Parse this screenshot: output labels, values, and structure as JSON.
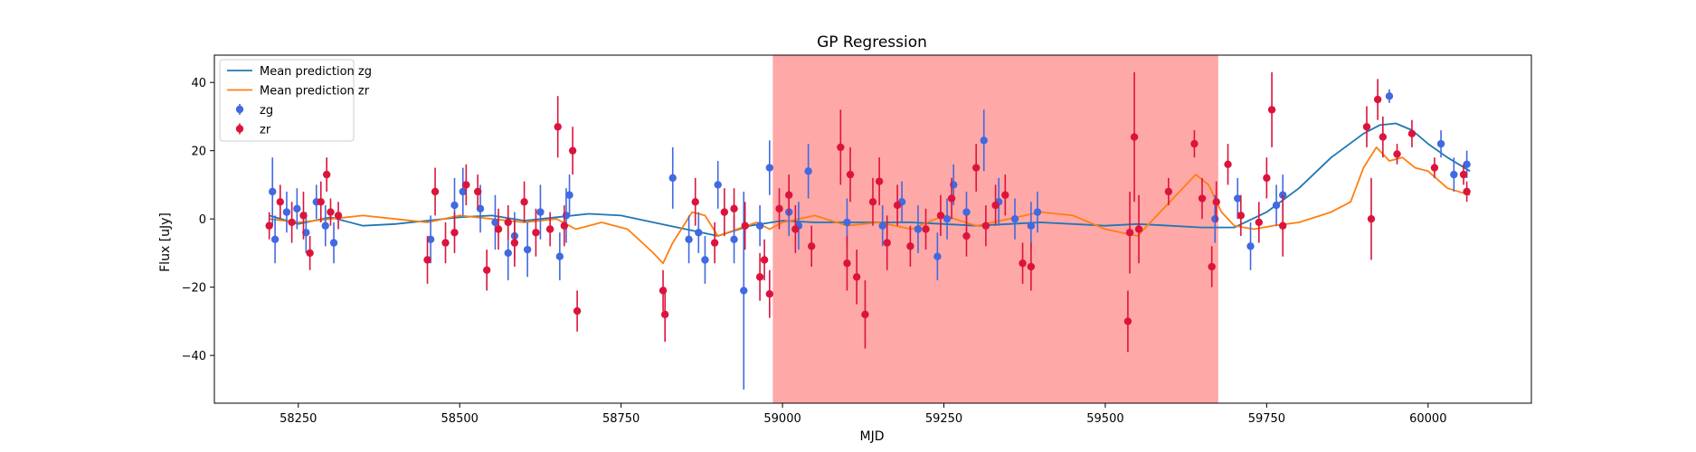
{
  "chart_data": {
    "type": "scatter",
    "title": "GP Regression",
    "xlabel": "MJD",
    "ylabel": "Flux [uJy]",
    "xlim": [
      58120,
      60160
    ],
    "ylim": [
      -54,
      48
    ],
    "xticks": [
      58250,
      58500,
      58750,
      59000,
      59250,
      59500,
      59750,
      60000
    ],
    "yticks": [
      -40,
      -20,
      0,
      20,
      40
    ],
    "shaded_region": {
      "x0": 58985,
      "x1": 59675,
      "color": "#ff7f7f"
    },
    "legend": {
      "placement": "top-left",
      "entries": [
        "Mean prediction zg",
        "Mean prediction zr",
        "zg",
        "zr"
      ]
    },
    "series": [
      {
        "name": "Mean prediction zg",
        "kind": "line",
        "color": "#1f77b4",
        "x": [
          58205,
          58250,
          58300,
          58350,
          58400,
          58450,
          58500,
          58550,
          58600,
          58650,
          58700,
          58750,
          58800,
          58850,
          58900,
          58950,
          59000,
          59050,
          59100,
          59150,
          59200,
          59250,
          59300,
          59350,
          59400,
          59450,
          59500,
          59550,
          59600,
          59650,
          59700,
          59750,
          59800,
          59850,
          59900,
          59925,
          59950,
          59975,
          60000,
          60030,
          60065
        ],
        "y": [
          1,
          -1.5,
          0.5,
          -2,
          -1.5,
          -0.5,
          0.5,
          1,
          -0.5,
          0.5,
          1.5,
          1,
          -1,
          -3,
          -5,
          -2,
          -0.5,
          -1,
          -1,
          -1,
          -1,
          -1.5,
          -2,
          -1.5,
          -1,
          -1.5,
          -2,
          -1.5,
          -2,
          -2.5,
          -2.5,
          2,
          9,
          18,
          25,
          27.5,
          28,
          26,
          22,
          18,
          14
        ]
      },
      {
        "name": "Mean prediction zr",
        "kind": "line",
        "color": "#ff7f0e",
        "x": [
          58205,
          58250,
          58300,
          58350,
          58400,
          58450,
          58500,
          58550,
          58600,
          58650,
          58680,
          58720,
          58760,
          58800,
          58815,
          58830,
          58860,
          58880,
          58900,
          58930,
          58960,
          58980,
          59000,
          59050,
          59100,
          59150,
          59200,
          59250,
          59300,
          59350,
          59400,
          59450,
          59500,
          59550,
          59600,
          59640,
          59660,
          59680,
          59700,
          59730,
          59760,
          59800,
          59850,
          59880,
          59900,
          59920,
          59940,
          59960,
          59980,
          60000,
          60030,
          60065
        ],
        "y": [
          0,
          -1,
          0,
          1,
          0,
          -1,
          1,
          0,
          -1,
          0,
          -3,
          -1,
          -3,
          -10,
          -13,
          -7,
          2,
          1,
          -5,
          -3,
          -1,
          -3,
          -1,
          1,
          -2,
          -1,
          -3,
          1,
          -2,
          0,
          2,
          1,
          -3,
          -5,
          5,
          13,
          10,
          2,
          -2,
          -3,
          -2,
          -1,
          2,
          5,
          15,
          21,
          17,
          18,
          15,
          14,
          9,
          7
        ]
      },
      {
        "name": "zg",
        "kind": "errorbar",
        "color": "#4169e1",
        "x": [
          58210,
          58214,
          58232,
          58248,
          58262,
          58278,
          58292,
          58305,
          58455,
          58492,
          58505,
          58532,
          58555,
          58575,
          58585,
          58605,
          58625,
          58655,
          58665,
          58670,
          58830,
          58855,
          58870,
          58880,
          58900,
          58925,
          58940,
          58965,
          58980,
          59010,
          59025,
          59040,
          59100,
          59155,
          59185,
          59210,
          59240,
          59255,
          59265,
          59285,
          59312,
          59335,
          59360,
          59385,
          59395,
          59670,
          59705,
          59725,
          59765,
          59775,
          59940,
          60020,
          60040,
          60060
        ],
        "y": [
          8,
          -6,
          2,
          3,
          -4,
          5,
          -2,
          -7,
          -6,
          4,
          8,
          3,
          -1,
          -10,
          -5,
          -9,
          2,
          -11,
          1,
          7,
          12,
          -6,
          -4,
          -12,
          10,
          -6,
          -21,
          -2,
          15,
          2,
          -2,
          14,
          -1,
          -2,
          5,
          -3,
          -11,
          0,
          10,
          2,
          23,
          5,
          0,
          -2,
          2,
          0,
          6,
          -8,
          4,
          7,
          36,
          22,
          13,
          16
        ],
        "err": [
          10,
          7,
          6,
          6,
          6,
          5,
          6,
          6,
          7,
          8,
          7,
          7,
          8,
          8,
          7,
          8,
          8,
          7,
          8,
          6,
          9,
          7,
          6,
          7,
          7,
          7,
          29,
          6,
          8,
          7,
          7,
          8,
          7,
          6,
          6,
          7,
          7,
          6,
          6,
          6,
          9,
          7,
          6,
          7,
          6,
          7,
          6,
          7,
          6,
          6,
          2,
          4,
          5,
          4
        ]
      },
      {
        "name": "zr",
        "kind": "errorbar",
        "color": "#dc143c",
        "x": [
          58205,
          58222,
          58240,
          58258,
          58268,
          58285,
          58294,
          58300,
          58312,
          58450,
          58462,
          58478,
          58492,
          58510,
          58528,
          58542,
          58560,
          58575,
          58585,
          58600,
          58618,
          58640,
          58652,
          58662,
          58675,
          58682,
          58815,
          58818,
          58865,
          58895,
          58910,
          58925,
          58942,
          58965,
          58972,
          58980,
          58995,
          59010,
          59020,
          59045,
          59090,
          59100,
          59105,
          59115,
          59128,
          59140,
          59150,
          59162,
          59178,
          59198,
          59222,
          59245,
          59262,
          59285,
          59300,
          59315,
          59330,
          59345,
          59372,
          59385,
          59535,
          59538,
          59545,
          59552,
          59598,
          59638,
          59650,
          59665,
          59672,
          59690,
          59710,
          59738,
          59750,
          59758,
          59775,
          59905,
          59912,
          59922,
          59930,
          59952,
          59975,
          60010,
          60055,
          60060
        ],
        "y": [
          -2,
          5,
          -1,
          1,
          -10,
          5,
          13,
          2,
          1,
          -12,
          8,
          -7,
          -4,
          10,
          8,
          -15,
          -3,
          -1,
          -7,
          5,
          -4,
          -3,
          27,
          -2,
          20,
          -27,
          -21,
          -28,
          5,
          -7,
          2,
          3,
          -2,
          -17,
          -12,
          -22,
          3,
          7,
          -3,
          -8,
          21,
          -13,
          13,
          -17,
          -28,
          5,
          11,
          -7,
          4,
          -8,
          -3,
          1,
          6,
          -5,
          15,
          -2,
          4,
          7,
          -13,
          -14,
          -30,
          -4,
          24,
          -3,
          8,
          22,
          6,
          -14,
          5,
          16,
          1,
          -1,
          12,
          32,
          -2,
          27,
          0,
          35,
          24,
          19,
          25,
          15,
          13,
          8
        ],
        "err": [
          4,
          5,
          6,
          7,
          5,
          6,
          5,
          4,
          4,
          7,
          7,
          6,
          6,
          6,
          5,
          6,
          6,
          5,
          7,
          6,
          7,
          5,
          9,
          6,
          7,
          6,
          6,
          8,
          7,
          6,
          7,
          6,
          7,
          7,
          6,
          7,
          6,
          6,
          7,
          6,
          11,
          8,
          8,
          8,
          10,
          7,
          7,
          8,
          6,
          6,
          6,
          6,
          6,
          6,
          7,
          6,
          6,
          6,
          6,
          7,
          9,
          12,
          19,
          10,
          4,
          4,
          6,
          6,
          6,
          6,
          6,
          6,
          6,
          11,
          9,
          6,
          12,
          6,
          6,
          3,
          4,
          3,
          3,
          3
        ]
      }
    ]
  }
}
